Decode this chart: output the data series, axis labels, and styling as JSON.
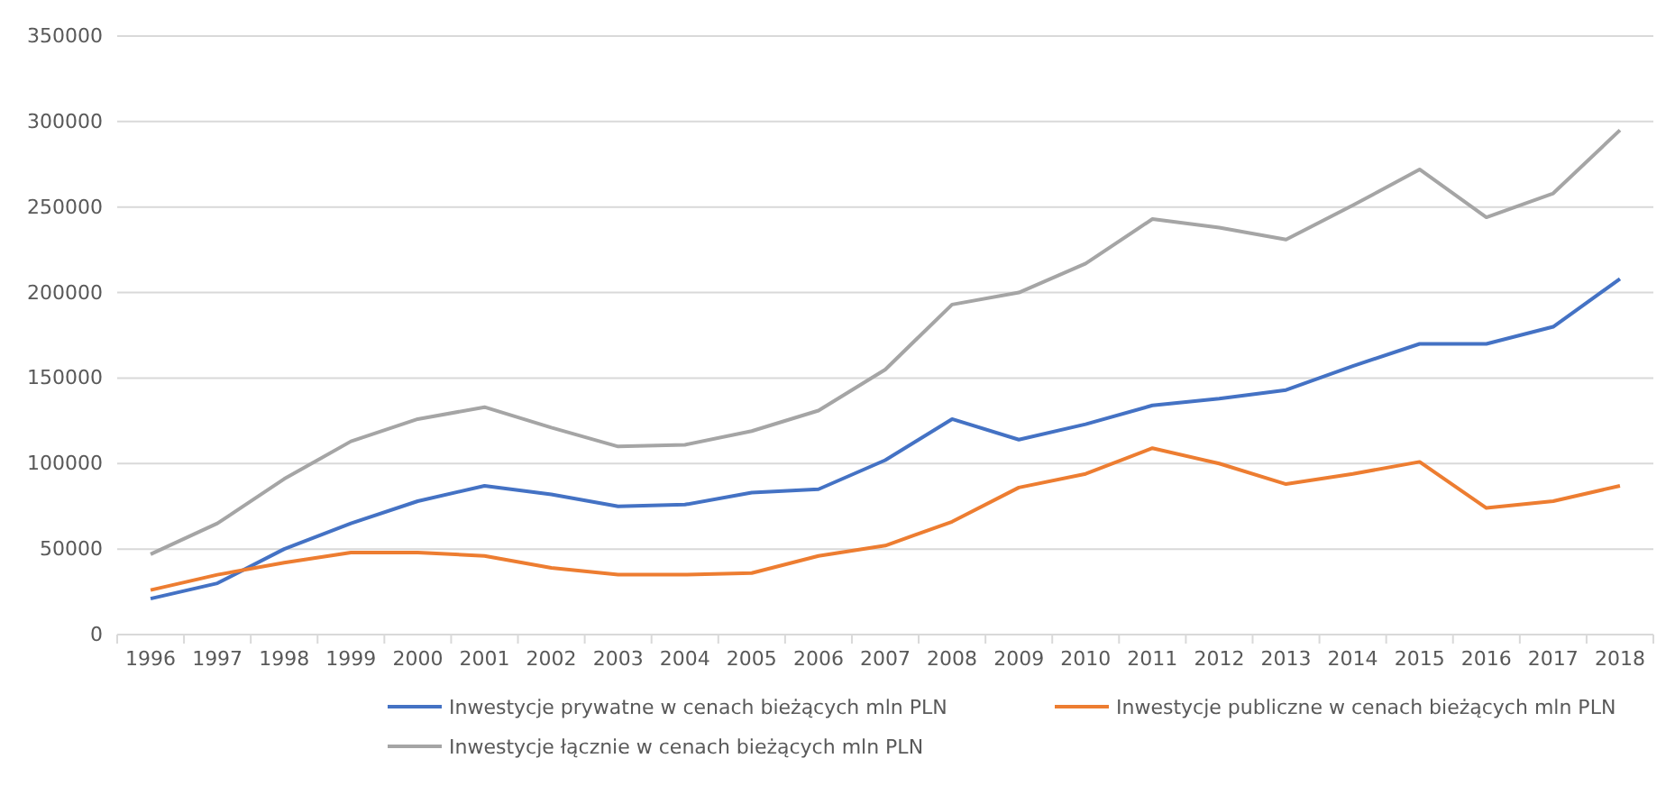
{
  "chart_data": {
    "type": "line",
    "categories": [
      "1996",
      "1997",
      "1998",
      "1999",
      "2000",
      "2001",
      "2002",
      "2003",
      "2004",
      "2005",
      "2006",
      "2007",
      "2008",
      "2009",
      "2010",
      "2011",
      "2012",
      "2013",
      "2014",
      "2015",
      "2016",
      "2017",
      "2018"
    ],
    "series": [
      {
        "name": "Inwestycje  prywatne w cenach bieżących mln PLN",
        "color": "#4472c4",
        "values": [
          21000,
          30000,
          50000,
          65000,
          78000,
          87000,
          82000,
          75000,
          76000,
          83000,
          85000,
          102000,
          126000,
          114000,
          123000,
          134000,
          138000,
          143000,
          157000,
          170000,
          170000,
          180000,
          208000
        ]
      },
      {
        "name": "Inwestycje publiczne w cenach bieżących mln PLN",
        "color": "#ed7d31",
        "values": [
          26000,
          35000,
          42000,
          48000,
          48000,
          46000,
          39000,
          35000,
          35000,
          36000,
          46000,
          52000,
          66000,
          86000,
          94000,
          109000,
          100000,
          88000,
          94000,
          101000,
          74000,
          78000,
          87000
        ]
      },
      {
        "name": "Inwestycje  łącznie w cenach bieżących mln PLN",
        "color": "#a5a5a5",
        "values": [
          47000,
          65000,
          91000,
          113000,
          126000,
          133000,
          121000,
          110000,
          111000,
          119000,
          131000,
          155000,
          193000,
          200000,
          217000,
          243000,
          238000,
          231000,
          251000,
          272000,
          244000,
          258000,
          295000
        ]
      }
    ],
    "ylim": [
      0,
      350000
    ],
    "yticks": [
      0,
      50000,
      100000,
      150000,
      200000,
      250000,
      300000,
      350000
    ],
    "grid": "y",
    "legend": "bottom",
    "marker": "none",
    "line_style": "solid"
  }
}
